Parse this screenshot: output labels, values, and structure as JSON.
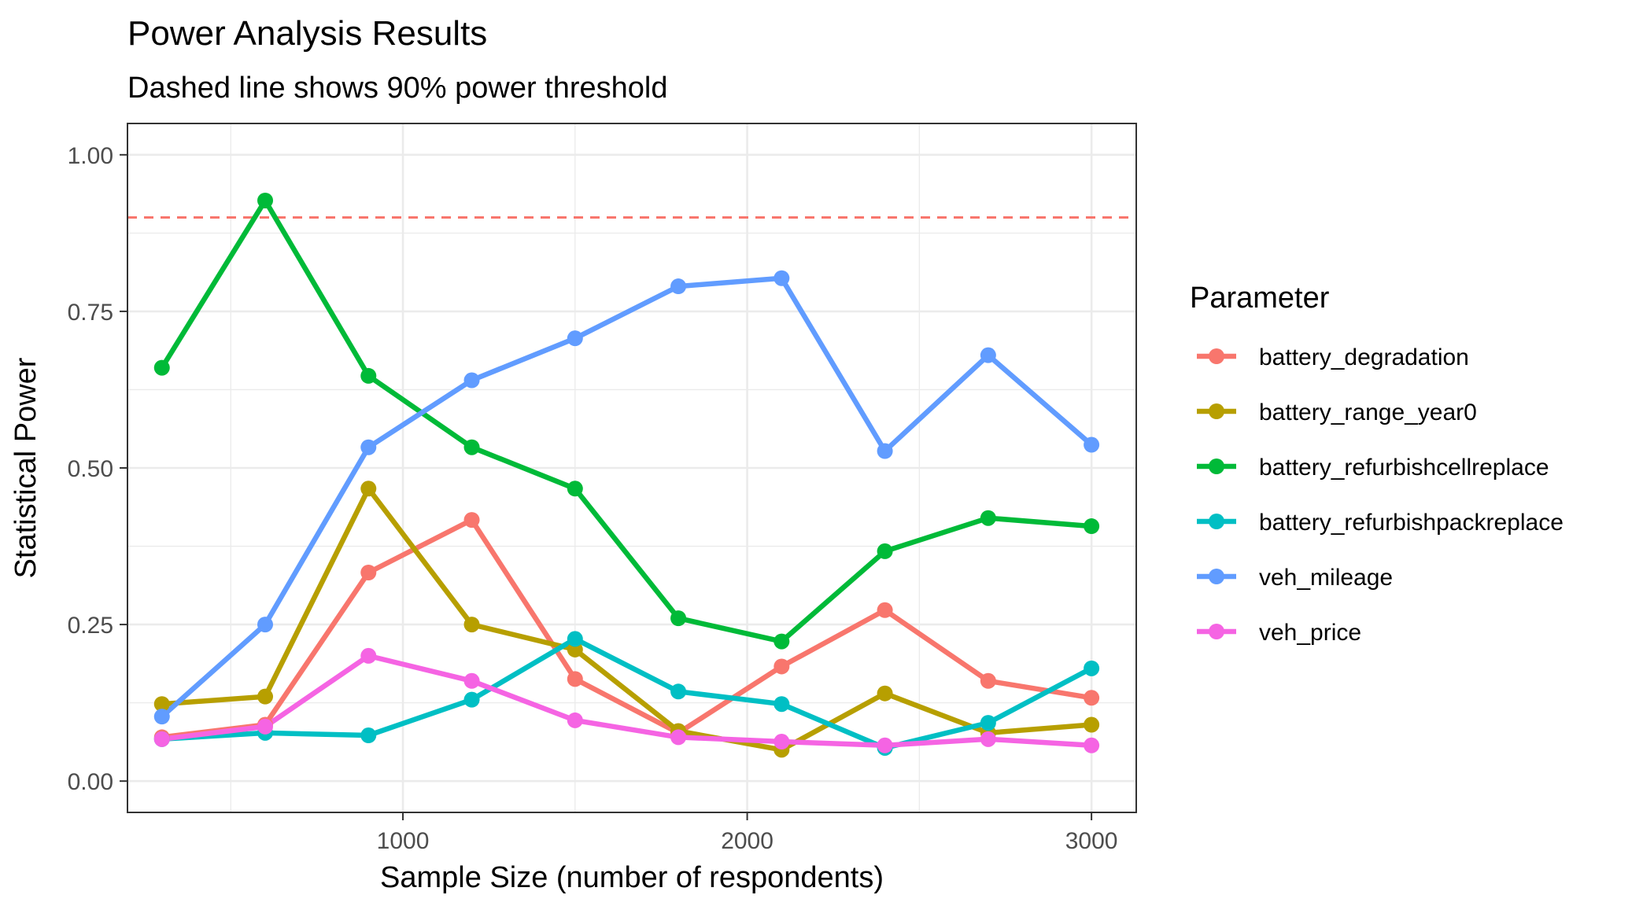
{
  "chart_data": {
    "type": "line",
    "title": "Power Analysis Results",
    "subtitle": "Dashed line shows 90% power threshold",
    "xlabel": "Sample Size (number of respondents)",
    "ylabel": "Statistical Power",
    "xlim": [
      200,
      3130
    ],
    "ylim": [
      -0.05,
      1.05
    ],
    "x_ticks": [
      1000,
      2000,
      3000
    ],
    "x_tick_labels": [
      "1000",
      "2000",
      "3000"
    ],
    "x_minor_ticks": [
      500,
      1500,
      2500
    ],
    "y_ticks": [
      0.0,
      0.25,
      0.5,
      0.75,
      1.0
    ],
    "y_tick_labels": [
      "0.00",
      "0.25",
      "0.50",
      "0.75",
      "1.00"
    ],
    "y_minor_ticks": [
      0.125,
      0.375,
      0.625,
      0.875
    ],
    "grid": true,
    "threshold": {
      "value": 0.9,
      "color": "#F8766D",
      "style": "dashed"
    },
    "legend": {
      "title": "Parameter",
      "position": "right"
    },
    "x": [
      300,
      600,
      900,
      1200,
      1500,
      1800,
      2100,
      2400,
      2700,
      3000
    ],
    "series": [
      {
        "name": "battery_degradation",
        "color": "#F8766D",
        "values": [
          0.07,
          0.09,
          0.333,
          0.417,
          0.163,
          0.077,
          0.183,
          0.273,
          0.16,
          0.133
        ]
      },
      {
        "name": "battery_range_year0",
        "color": "#B79F00",
        "values": [
          0.123,
          0.135,
          0.467,
          0.25,
          0.21,
          0.08,
          0.05,
          0.14,
          0.077,
          0.09
        ]
      },
      {
        "name": "battery_refurbishcellreplace",
        "color": "#00BA38",
        "values": [
          0.66,
          0.927,
          0.647,
          0.533,
          0.467,
          0.26,
          0.223,
          0.367,
          0.42,
          0.407
        ]
      },
      {
        "name": "battery_refurbishpackreplace",
        "color": "#00BFC4",
        "values": [
          0.067,
          0.077,
          0.073,
          0.13,
          0.227,
          0.143,
          0.123,
          0.053,
          0.093,
          0.18
        ]
      },
      {
        "name": "veh_mileage",
        "color": "#619CFF",
        "values": [
          0.103,
          0.25,
          0.533,
          0.64,
          0.707,
          0.79,
          0.803,
          0.527,
          0.68,
          0.537
        ]
      },
      {
        "name": "veh_price",
        "color": "#F564E3",
        "values": [
          0.067,
          0.087,
          0.2,
          0.16,
          0.097,
          0.07,
          0.063,
          0.057,
          0.067,
          0.057
        ]
      }
    ]
  }
}
